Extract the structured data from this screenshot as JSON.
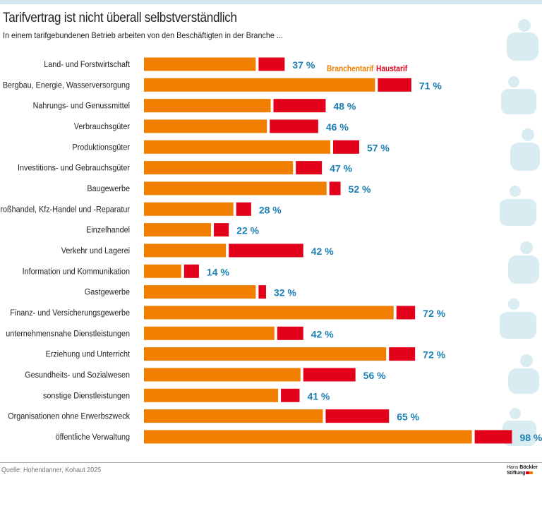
{
  "title": "Tarifvertrag ist nicht überall selbstverständlich",
  "subtitle": "In einem tarifgebundenen Betrieb arbeiten von den Beschäftigten in der Branche ...",
  "source": "Quelle: Hohendanner, Kohaut 2025",
  "logo": {
    "line1a": "Hans",
    "line1b": "Böckler",
    "line2": "Stiftung"
  },
  "colors": {
    "branchentarif": "#f07f00",
    "haustarif": "#e2001a",
    "total_label": "#1b7fb3",
    "decoration": "#d4eaf1"
  },
  "chart_data": {
    "type": "bar",
    "orientation": "horizontal",
    "stacked": true,
    "title": "Tarifvertrag ist nicht überall selbstverständlich",
    "subtitle": "In einem tarifgebundenen Betrieb arbeiten von den Beschäftigten in der Branche ...",
    "legend": {
      "placement": "top-right",
      "entries": [
        "Branchentarif",
        "Haustarif"
      ]
    },
    "categories": [
      "Land- und Forstwirtschaft",
      "Bergbau, Energie, Wasserversorgung",
      "Nahrungs- und Genussmittel",
      "Verbrauchsgüter",
      "Produktionsgüter",
      "Investitions- und Gebrauchsgüter",
      "Baugewerbe",
      "Großhandel, Kfz-Handel und -Reparatur",
      "Einzelhandel",
      "Verkehr und Lagerei",
      "Information und Kommunikation",
      "Gastgewerbe",
      "Finanz- und Versicherungsgewerbe",
      "unternehmensnahe Dienstleistungen",
      "Erziehung und Unterricht",
      "Gesundheits- und Sozialwesen",
      "sonstige Dienstleistungen",
      "Organisationen ohne Erwerbszweck",
      "öffentliche Verwaltung"
    ],
    "series": [
      {
        "name": "Branchentarif",
        "values": [
          30,
          62,
          34,
          33,
          50,
          40,
          49,
          24,
          18,
          22,
          10,
          30,
          67,
          35,
          65,
          42,
          36,
          48,
          88
        ]
      },
      {
        "name": "Haustarif",
        "values": [
          7,
          9,
          14,
          13,
          7,
          7,
          3,
          4,
          4,
          20,
          4,
          2,
          5,
          7,
          7,
          14,
          5,
          17,
          10
        ]
      }
    ],
    "totals": [
      "37 %",
      "71 %",
      "48 %",
      "46 %",
      "57 %",
      "47 %",
      "52 %",
      "28 %",
      "22 %",
      "42 %",
      "14 %",
      "32 %",
      "72 %",
      "42 %",
      "72 %",
      "56 %",
      "41 %",
      "65 %",
      "98 %"
    ],
    "xlim": [
      0,
      100
    ],
    "unit": "%",
    "grid": false
  }
}
